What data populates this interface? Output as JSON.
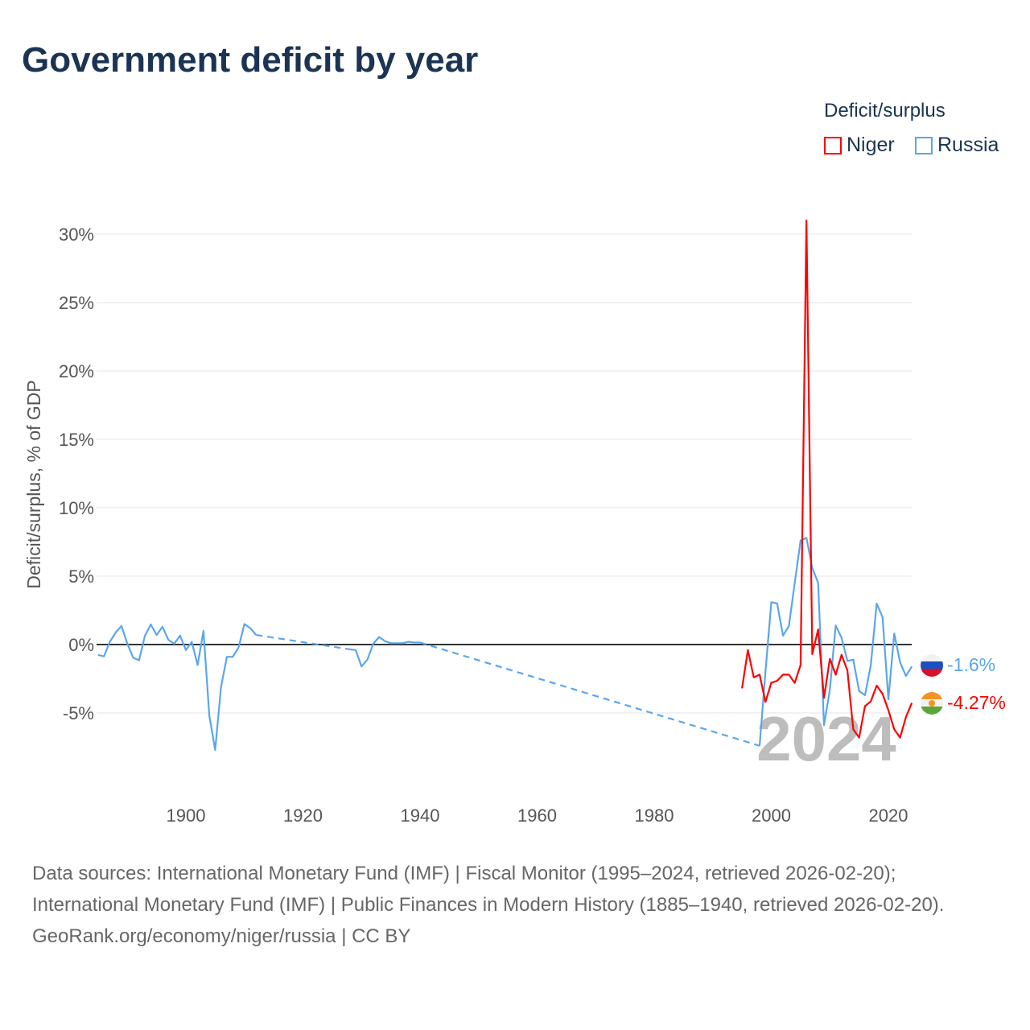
{
  "title": "Government deficit by year",
  "legend": {
    "title": "Deficit/surplus",
    "items": [
      {
        "name": "Niger",
        "color": "#ff0000"
      },
      {
        "name": "Russia",
        "color": "#5aa6ec"
      }
    ]
  },
  "chart_data": {
    "type": "line",
    "title": "Government deficit by year",
    "ylabel": "Deficit/surplus, % of GDP",
    "xlabel": "",
    "xlim": [
      1885,
      2024
    ],
    "ylim": [
      -10,
      31
    ],
    "x_ticks": [
      1900,
      1920,
      1940,
      1960,
      1980,
      2000,
      2020
    ],
    "y_ticks": [
      {
        "v": 30,
        "label": "30%"
      },
      {
        "v": 25,
        "label": "25%"
      },
      {
        "v": 20,
        "label": "20%"
      },
      {
        "v": 15,
        "label": "15%"
      },
      {
        "v": 10,
        "label": "10%"
      },
      {
        "v": 5,
        "label": "5%"
      },
      {
        "v": 0,
        "label": "0%"
      },
      {
        "v": -5,
        "label": "-5%"
      }
    ],
    "year_label": "2024",
    "series": [
      {
        "name": "Russia",
        "color": "#5aa6ec",
        "end_label": "-1.6%",
        "points": [
          [
            1885,
            -0.76
          ],
          [
            1886,
            -0.86
          ],
          [
            1887,
            0.2
          ],
          [
            1888,
            0.88
          ],
          [
            1889,
            1.35
          ],
          [
            1890,
            0.06
          ],
          [
            1891,
            -0.96
          ],
          [
            1892,
            -1.15
          ],
          [
            1893,
            0.65
          ],
          [
            1894,
            1.47
          ],
          [
            1895,
            0.7
          ],
          [
            1896,
            1.3
          ],
          [
            1897,
            0.35
          ],
          [
            1898,
            0.06
          ],
          [
            1899,
            0.65
          ],
          [
            1900,
            -0.4
          ],
          [
            1901,
            0.2
          ],
          [
            1902,
            -1.5
          ],
          [
            1903,
            1.0
          ],
          [
            1904,
            -5.2
          ],
          [
            1905,
            -7.7
          ],
          [
            1906,
            -3.1
          ],
          [
            1907,
            -0.9
          ],
          [
            1908,
            -0.9
          ],
          [
            1909,
            -0.2
          ],
          [
            1910,
            1.5
          ],
          [
            1911,
            1.2
          ],
          [
            1912,
            0.7
          ],
          [
            1928,
            -0.35
          ],
          [
            1929,
            -0.4
          ],
          [
            1930,
            -1.6
          ],
          [
            1931,
            -1.1
          ],
          [
            1932,
            0.06
          ],
          [
            1933,
            0.55
          ],
          [
            1934,
            0.25
          ],
          [
            1935,
            0.1
          ],
          [
            1936,
            0.1
          ],
          [
            1937,
            0.1
          ],
          [
            1938,
            0.2
          ],
          [
            1939,
            0.15
          ],
          [
            1940,
            0.15
          ],
          [
            1998,
            -7.4
          ],
          [
            1999,
            -2.0
          ],
          [
            2000,
            3.1
          ],
          [
            2001,
            3.0
          ],
          [
            2002,
            0.65
          ],
          [
            2003,
            1.35
          ],
          [
            2004,
            4.5
          ],
          [
            2005,
            7.6
          ],
          [
            2006,
            7.8
          ],
          [
            2007,
            5.6
          ],
          [
            2008,
            4.5
          ],
          [
            2009,
            -5.9
          ],
          [
            2010,
            -3.3
          ],
          [
            2011,
            1.4
          ],
          [
            2012,
            0.5
          ],
          [
            2013,
            -1.2
          ],
          [
            2014,
            -1.1
          ],
          [
            2015,
            -3.4
          ],
          [
            2016,
            -3.7
          ],
          [
            2017,
            -1.5
          ],
          [
            2018,
            3.0
          ],
          [
            2019,
            2.0
          ],
          [
            2020,
            -4.0
          ],
          [
            2021,
            0.8
          ],
          [
            2022,
            -1.3
          ],
          [
            2023,
            -2.3
          ],
          [
            2024,
            -1.6
          ]
        ]
      },
      {
        "name": "Niger",
        "color": "#ff0000",
        "end_label": "-4.27%",
        "points": [
          [
            1995,
            -3.2
          ],
          [
            1996,
            -0.4
          ],
          [
            1997,
            -2.4
          ],
          [
            1998,
            -2.2
          ],
          [
            1999,
            -4.2
          ],
          [
            2000,
            -2.8
          ],
          [
            2001,
            -2.65
          ],
          [
            2002,
            -2.2
          ],
          [
            2003,
            -2.2
          ],
          [
            2004,
            -2.8
          ],
          [
            2005,
            -1.5
          ],
          [
            2006,
            31.0
          ],
          [
            2007,
            -0.7
          ],
          [
            2008,
            1.1
          ],
          [
            2009,
            -3.9
          ],
          [
            2010,
            -1.05
          ],
          [
            2011,
            -2.2
          ],
          [
            2012,
            -0.75
          ],
          [
            2013,
            -1.9
          ],
          [
            2014,
            -6.2
          ],
          [
            2015,
            -6.8
          ],
          [
            2016,
            -4.5
          ],
          [
            2017,
            -4.15
          ],
          [
            2018,
            -3.0
          ],
          [
            2019,
            -3.6
          ],
          [
            2020,
            -4.8
          ],
          [
            2021,
            -6.2
          ],
          [
            2022,
            -6.8
          ],
          [
            2023,
            -5.3
          ],
          [
            2024,
            -4.27
          ]
        ]
      }
    ]
  },
  "footer": {
    "sources": "Data sources: International Monetary Fund (IMF) | Fiscal Monitor (1995–2024, retrieved 2026-02-20); International Monetary Fund (IMF) | Public Finances in Modern History (1885–1940, retrieved 2026-02-20).",
    "credit": "GeoRank.org/economy/niger/russia | CC BY"
  }
}
